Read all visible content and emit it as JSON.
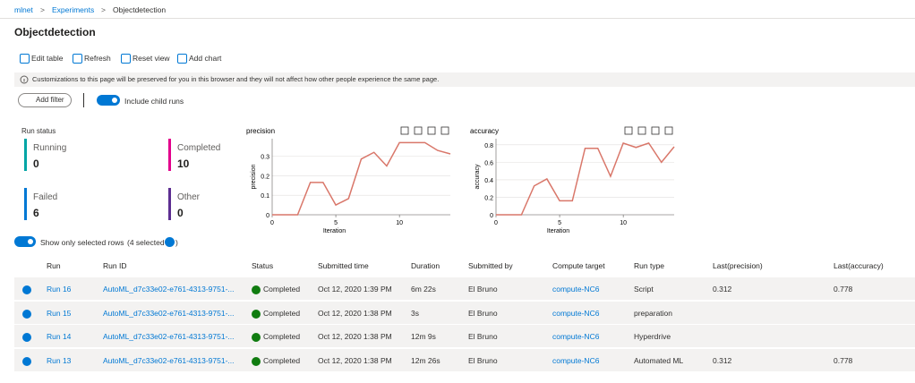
{
  "breadcrumb": [
    "mlnet",
    "Experiments",
    "Objectdetection"
  ],
  "breadcrumb_separator": ">",
  "title": "Objectdetection",
  "toolbar": [
    "Edit table",
    "Refresh",
    "Reset view",
    "Add chart"
  ],
  "notice": "Customizations to this page will be preserved for you in this browser and they will not affect how other people experience the same page.",
  "add_filter": "Add filter",
  "include_child_runs": "Include child runs",
  "run_status": {
    "title": "Run status",
    "items": [
      {
        "label": "Running",
        "value": "0",
        "color": "#00a5a5"
      },
      {
        "label": "Completed",
        "value": "10",
        "color": "#e3008c"
      },
      {
        "label": "Failed",
        "value": "6",
        "color": "#0078d4"
      },
      {
        "label": "Other",
        "value": "0",
        "color": "#5c2d91"
      }
    ]
  },
  "charts": [
    {
      "type": "line",
      "title": "precision",
      "x_label": "Iteration",
      "y_label": "precision",
      "color": "#d9776a",
      "x": [
        0,
        1,
        2,
        3,
        4,
        5,
        6,
        7,
        8,
        9,
        10,
        11,
        12,
        13,
        14
      ],
      "values": [
        0,
        0,
        0,
        0.166,
        0.166,
        0.05,
        0.083,
        0.286,
        0.32,
        0.25,
        0.37,
        0.37,
        0.37,
        0.33,
        0.312
      ],
      "xlim": [
        0,
        14
      ],
      "ylim": [
        0,
        0.39
      ],
      "xticks": [
        0,
        5,
        10
      ],
      "yticks": [
        0,
        0.1,
        0.2,
        0.3
      ],
      "grid": true
    },
    {
      "type": "line",
      "title": "accuracy",
      "x_label": "Iteration",
      "y_label": "accuracy",
      "color": "#d9776a",
      "x": [
        0,
        1,
        2,
        3,
        4,
        5,
        6,
        7,
        8,
        9,
        10,
        11,
        12,
        13,
        14
      ],
      "values": [
        0,
        0,
        0,
        0.33,
        0.41,
        0.16,
        0.16,
        0.76,
        0.76,
        0.44,
        0.82,
        0.77,
        0.82,
        0.6,
        0.778
      ],
      "xlim": [
        0,
        14
      ],
      "ylim": [
        0,
        0.87
      ],
      "xticks": [
        0,
        5,
        10
      ],
      "yticks": [
        0,
        0.2,
        0.4,
        0.6,
        0.8
      ],
      "grid": true
    }
  ],
  "show_selected": "Show only selected rows",
  "selected_count": "(4 selected",
  "selected_close": ")",
  "table": {
    "columns": [
      "Run",
      "Run ID",
      "Status",
      "Submitted time",
      "Duration",
      "Submitted by",
      "Compute target",
      "Run type",
      "Last(precision)",
      "Last(accuracy)"
    ],
    "rows": [
      [
        "Run 16",
        "AutoML_d7c33e02-e761-4313-9751-...",
        "Completed",
        "Oct 12, 2020 1:39 PM",
        "6m 22s",
        "El Bruno",
        "compute-NC6",
        "Script",
        "0.312",
        "0.778"
      ],
      [
        "Run 15",
        "AutoML_d7c33e02-e761-4313-9751-...",
        "Completed",
        "Oct 12, 2020 1:38 PM",
        "3s",
        "El Bruno",
        "compute-NC6",
        "preparation",
        null,
        null
      ],
      [
        "Run 14",
        "AutoML_d7c33e02-e761-4313-9751-...",
        "Completed",
        "Oct 12, 2020 1:38 PM",
        "12m 9s",
        "El Bruno",
        "compute-NC6",
        "Hyperdrive",
        null,
        null
      ],
      [
        "Run 13",
        "AutoML_d7c33e02-e761-4313-9751-...",
        "Completed",
        "Oct 12, 2020 1:38 PM",
        "12m 26s",
        "El Bruno",
        "compute-NC6",
        "Automated ML",
        "0.312",
        "0.778"
      ]
    ]
  }
}
